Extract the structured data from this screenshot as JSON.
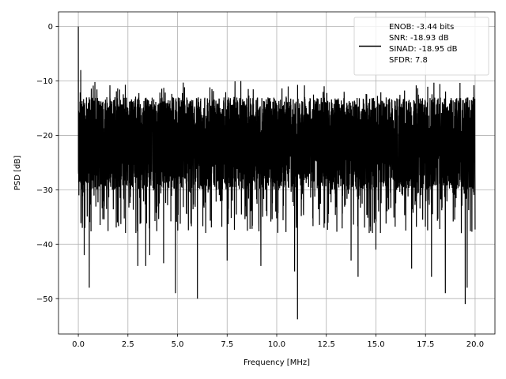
{
  "chart_data": {
    "type": "line",
    "title": "",
    "xlabel": "Frequency [MHz]",
    "ylabel": "PSD [dB]",
    "xlim": [
      -0.999,
      20.999
    ],
    "ylim": [
      -56.5,
      2.7
    ],
    "xticks": [
      0.0,
      2.5,
      5.0,
      7.5,
      10.0,
      12.5,
      15.0,
      17.5,
      20.0
    ],
    "xtick_labels": [
      "0.0",
      "2.5",
      "5.0",
      "7.5",
      "10.0",
      "12.5",
      "15.0",
      "17.5",
      "20.0"
    ],
    "yticks": [
      0,
      -10,
      -20,
      -30,
      -40,
      -50
    ],
    "ytick_labels": [
      "0",
      "−10",
      "−20",
      "−30",
      "−40",
      "−50"
    ],
    "grid": true,
    "legend_position": "top-right",
    "legend_lines": [
      "ENOB: -3.44 bits",
      "SNR: -18.93 dB",
      "SINAD: -18.95 dB",
      "SFDR: 7.8"
    ],
    "series": [
      {
        "color": "#000000",
        "sample_count": 4096,
        "x_range": [
          0.0,
          20.0
        ],
        "noise_floor_range_db": [
          -30,
          -13
        ],
        "peak_points": [
          [
            0.0,
            0.0
          ],
          [
            0.05,
            -24.0
          ],
          [
            0.12,
            -8.0
          ],
          [
            0.2,
            -37.0
          ],
          [
            0.3,
            -42.0
          ],
          [
            0.55,
            -48.0
          ],
          [
            3.0,
            -44.0
          ],
          [
            3.4,
            -44.0
          ],
          [
            3.6,
            -42.0
          ],
          [
            4.3,
            -43.5
          ],
          [
            4.9,
            -49.0
          ],
          [
            6.0,
            -50.0
          ],
          [
            7.5,
            -43.0
          ],
          [
            9.2,
            -44.0
          ],
          [
            10.9,
            -45.0
          ],
          [
            11.05,
            -53.8
          ],
          [
            13.75,
            -43.0
          ],
          [
            14.1,
            -46.0
          ],
          [
            15.0,
            -41.0
          ],
          [
            16.8,
            -44.5
          ],
          [
            17.8,
            -46.0
          ],
          [
            18.5,
            -49.0
          ],
          [
            19.5,
            -51.0
          ],
          [
            19.6,
            -48.0
          ]
        ]
      }
    ]
  }
}
